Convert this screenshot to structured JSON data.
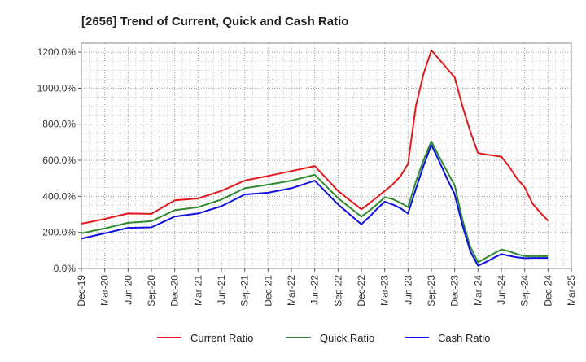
{
  "chart_data": {
    "type": "line",
    "title": "[2656]  Trend of Current, Quick and Cash Ratio",
    "xlabel": "",
    "ylabel": "",
    "ylim": [
      0,
      1250
    ],
    "yticks": [
      0,
      200,
      400,
      600,
      800,
      1000,
      1200
    ],
    "ytick_labels": [
      "0.0%",
      "200.0%",
      "400.0%",
      "600.0%",
      "800.0%",
      "1000.0%",
      "1200.0%"
    ],
    "x_tick_labels": [
      "Dec-19",
      "Mar-20",
      "Jun-20",
      "Sep-20",
      "Dec-20",
      "Mar-21",
      "Jun-21",
      "Sep-21",
      "Dec-21",
      "Mar-22",
      "Jun-22",
      "Sep-22",
      "Dec-22",
      "Mar-23",
      "Jun-23",
      "Sep-23",
      "Dec-23",
      "Mar-24",
      "Jun-24",
      "Sep-24",
      "Dec-24",
      "Mar-25"
    ],
    "grid": true,
    "legend_position": "bottom",
    "x": [
      "Dec-19",
      "Mar-20",
      "Jun-20",
      "Sep-20",
      "Dec-20",
      "Mar-21",
      "Jun-21",
      "Sep-21",
      "Dec-21",
      "Mar-22",
      "Jun-22",
      "Sep-22",
      "Dec-22",
      "Jan-23",
      "Feb-23",
      "Mar-23",
      "Apr-23",
      "May-23",
      "Jun-23",
      "Jul-23",
      "Aug-23",
      "Sep-23",
      "Oct-23",
      "Nov-23",
      "Dec-23",
      "Jan-24",
      "Feb-24",
      "Mar-24",
      "Apr-24",
      "May-24",
      "Jun-24",
      "Jul-24",
      "Aug-24",
      "Sep-24",
      "Oct-24",
      "Nov-24",
      "Dec-24"
    ],
    "series": [
      {
        "name": "Current Ratio",
        "color": "#e31a1c",
        "values": [
          248,
          275,
          305,
          303,
          378,
          388,
          430,
          488,
          513,
          540,
          568,
          430,
          328,
          360,
          395,
          430,
          465,
          510,
          580,
          900,
          1080,
          1210,
          1160,
          1110,
          1060,
          900,
          760,
          640,
          632,
          626,
          620,
          565,
          500,
          450,
          360,
          310,
          265
        ]
      },
      {
        "name": "Quick Ratio",
        "color": "#2e8b2e",
        "values": [
          195,
          222,
          253,
          262,
          323,
          340,
          382,
          445,
          465,
          487,
          520,
          390,
          287,
          320,
          355,
          395,
          385,
          365,
          340,
          480,
          600,
          705,
          620,
          540,
          460,
          270,
          120,
          35,
          58,
          82,
          105,
          95,
          80,
          68,
          68,
          68,
          68
        ]
      },
      {
        "name": "Cash Ratio",
        "color": "#1010e0",
        "values": [
          165,
          195,
          225,
          228,
          288,
          305,
          345,
          410,
          420,
          445,
          487,
          355,
          245,
          285,
          330,
          370,
          355,
          335,
          305,
          440,
          570,
          685,
          595,
          500,
          410,
          240,
          95,
          15,
          35,
          58,
          80,
          70,
          62,
          57,
          58,
          58,
          58
        ]
      }
    ]
  }
}
